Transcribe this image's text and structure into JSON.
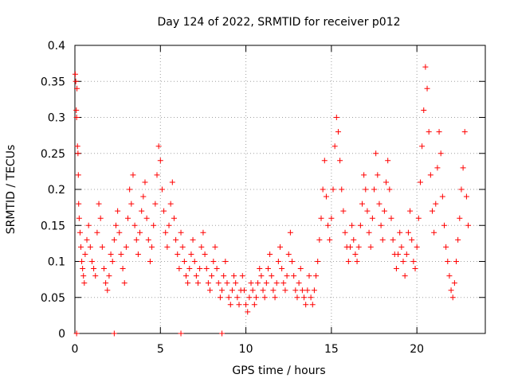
{
  "chart_data": {
    "type": "scatter",
    "title": "Day 124 of 2022, SRMTID for receiver p012",
    "xlabel": "GPS time / hours",
    "ylabel": "SRMTID / TECUs",
    "xlim": [
      0,
      24
    ],
    "ylim": [
      0,
      0.4
    ],
    "x_ticks": [
      0,
      5,
      10,
      15,
      20
    ],
    "x_tick_labels": [
      "0",
      "5",
      "10",
      "15",
      "20"
    ],
    "y_ticks": [
      0,
      0.05,
      0.1,
      0.15,
      0.2,
      0.25,
      0.3,
      0.35,
      0.4
    ],
    "y_tick_labels": [
      "0",
      "0.05",
      "0.1",
      "0.15",
      "0.2",
      "0.25",
      "0.3",
      "0.35",
      "0.4"
    ],
    "grid": true,
    "marker": "plus",
    "color": "#ff0000",
    "series": [
      {
        "name": "SRMTID",
        "points": [
          [
            0.02,
            0.36
          ],
          [
            0.05,
            0.35
          ],
          [
            0.08,
            0.31
          ],
          [
            0.1,
            0.3
          ],
          [
            0.12,
            0.34
          ],
          [
            0.15,
            0.26
          ],
          [
            0.18,
            0.25
          ],
          [
            0.2,
            0.22
          ],
          [
            0.22,
            0.18
          ],
          [
            0.25,
            0.16
          ],
          [
            0.3,
            0.14
          ],
          [
            0.35,
            0.12
          ],
          [
            0.4,
            0.1
          ],
          [
            0.45,
            0.09
          ],
          [
            0.5,
            0.08
          ],
          [
            0.55,
            0.07
          ],
          [
            0.6,
            0.11
          ],
          [
            0.7,
            0.13
          ],
          [
            0.8,
            0.15
          ],
          [
            0.9,
            0.12
          ],
          [
            1.0,
            0.1
          ],
          [
            1.1,
            0.09
          ],
          [
            1.2,
            0.08
          ],
          [
            1.3,
            0.14
          ],
          [
            1.4,
            0.18
          ],
          [
            1.5,
            0.16
          ],
          [
            1.6,
            0.12
          ],
          [
            1.7,
            0.09
          ],
          [
            1.8,
            0.07
          ],
          [
            1.9,
            0.06
          ],
          [
            2.0,
            0.08
          ],
          [
            2.1,
            0.11
          ],
          [
            2.2,
            0.1
          ],
          [
            2.3,
            0.13
          ],
          [
            2.4,
            0.15
          ],
          [
            2.5,
            0.17
          ],
          [
            2.6,
            0.14
          ],
          [
            2.7,
            0.11
          ],
          [
            2.8,
            0.09
          ],
          [
            2.9,
            0.07
          ],
          [
            3.0,
            0.12
          ],
          [
            3.1,
            0.16
          ],
          [
            3.2,
            0.2
          ],
          [
            3.3,
            0.18
          ],
          [
            3.4,
            0.22
          ],
          [
            3.5,
            0.15
          ],
          [
            3.6,
            0.13
          ],
          [
            3.7,
            0.11
          ],
          [
            3.8,
            0.14
          ],
          [
            3.9,
            0.17
          ],
          [
            4.0,
            0.19
          ],
          [
            4.1,
            0.21
          ],
          [
            4.2,
            0.16
          ],
          [
            4.3,
            0.13
          ],
          [
            4.4,
            0.1
          ],
          [
            4.5,
            0.12
          ],
          [
            4.6,
            0.15
          ],
          [
            4.7,
            0.18
          ],
          [
            4.8,
            0.22
          ],
          [
            4.9,
            0.26
          ],
          [
            5.0,
            0.24
          ],
          [
            5.1,
            0.2
          ],
          [
            5.2,
            0.17
          ],
          [
            5.3,
            0.14
          ],
          [
            5.4,
            0.12
          ],
          [
            5.5,
            0.15
          ],
          [
            5.6,
            0.18
          ],
          [
            5.7,
            0.21
          ],
          [
            5.8,
            0.16
          ],
          [
            5.9,
            0.13
          ],
          [
            6.0,
            0.11
          ],
          [
            6.1,
            0.09
          ],
          [
            6.2,
            0.14
          ],
          [
            6.3,
            0.12
          ],
          [
            6.4,
            0.1
          ],
          [
            6.5,
            0.08
          ],
          [
            6.6,
            0.07
          ],
          [
            6.7,
            0.09
          ],
          [
            6.8,
            0.11
          ],
          [
            6.9,
            0.13
          ],
          [
            7.0,
            0.1
          ],
          [
            7.1,
            0.08
          ],
          [
            7.2,
            0.07
          ],
          [
            7.3,
            0.09
          ],
          [
            7.4,
            0.12
          ],
          [
            7.5,
            0.14
          ],
          [
            7.6,
            0.11
          ],
          [
            7.7,
            0.09
          ],
          [
            7.8,
            0.07
          ],
          [
            7.9,
            0.06
          ],
          [
            8.0,
            0.08
          ],
          [
            8.1,
            0.1
          ],
          [
            8.2,
            0.12
          ],
          [
            8.3,
            0.09
          ],
          [
            8.4,
            0.07
          ],
          [
            8.5,
            0.05
          ],
          [
            8.6,
            0.06
          ],
          [
            8.7,
            0.08
          ],
          [
            8.8,
            0.1
          ],
          [
            8.9,
            0.07
          ],
          [
            9.0,
            0.05
          ],
          [
            9.1,
            0.04
          ],
          [
            9.2,
            0.06
          ],
          [
            9.3,
            0.08
          ],
          [
            9.4,
            0.07
          ],
          [
            9.5,
            0.05
          ],
          [
            9.6,
            0.04
          ],
          [
            9.7,
            0.06
          ],
          [
            9.8,
            0.08
          ],
          [
            9.9,
            0.06
          ],
          [
            10.0,
            0.04
          ],
          [
            10.1,
            0.03
          ],
          [
            10.2,
            0.05
          ],
          [
            10.3,
            0.07
          ],
          [
            10.4,
            0.06
          ],
          [
            10.5,
            0.04
          ],
          [
            10.6,
            0.05
          ],
          [
            10.7,
            0.07
          ],
          [
            10.8,
            0.09
          ],
          [
            10.9,
            0.08
          ],
          [
            11.0,
            0.06
          ],
          [
            11.1,
            0.05
          ],
          [
            11.2,
            0.07
          ],
          [
            11.3,
            0.09
          ],
          [
            11.4,
            0.11
          ],
          [
            11.5,
            0.08
          ],
          [
            11.6,
            0.06
          ],
          [
            11.7,
            0.05
          ],
          [
            11.8,
            0.07
          ],
          [
            11.9,
            0.1
          ],
          [
            12.0,
            0.12
          ],
          [
            12.1,
            0.09
          ],
          [
            12.2,
            0.07
          ],
          [
            12.3,
            0.06
          ],
          [
            12.4,
            0.08
          ],
          [
            12.5,
            0.11
          ],
          [
            12.6,
            0.14
          ],
          [
            12.7,
            0.1
          ],
          [
            12.8,
            0.08
          ],
          [
            12.9,
            0.06
          ],
          [
            13.0,
            0.05
          ],
          [
            13.1,
            0.07
          ],
          [
            13.2,
            0.09
          ],
          [
            13.3,
            0.06
          ],
          [
            13.4,
            0.05
          ],
          [
            13.5,
            0.04
          ],
          [
            13.6,
            0.06
          ],
          [
            13.7,
            0.08
          ],
          [
            13.8,
            0.05
          ],
          [
            13.9,
            0.04
          ],
          [
            14.0,
            0.06
          ],
          [
            14.1,
            0.08
          ],
          [
            14.2,
            0.1
          ],
          [
            14.3,
            0.13
          ],
          [
            14.4,
            0.16
          ],
          [
            14.5,
            0.2
          ],
          [
            14.6,
            0.24
          ],
          [
            14.7,
            0.19
          ],
          [
            14.8,
            0.15
          ],
          [
            14.9,
            0.13
          ],
          [
            15.0,
            0.16
          ],
          [
            15.1,
            0.2
          ],
          [
            15.2,
            0.26
          ],
          [
            15.3,
            0.3
          ],
          [
            15.4,
            0.28
          ],
          [
            15.5,
            0.24
          ],
          [
            15.6,
            0.2
          ],
          [
            15.7,
            0.17
          ],
          [
            15.8,
            0.14
          ],
          [
            15.9,
            0.12
          ],
          [
            16.0,
            0.1
          ],
          [
            16.1,
            0.12
          ],
          [
            16.2,
            0.15
          ],
          [
            16.3,
            0.13
          ],
          [
            16.4,
            0.11
          ],
          [
            16.5,
            0.1
          ],
          [
            16.6,
            0.12
          ],
          [
            16.7,
            0.15
          ],
          [
            16.8,
            0.18
          ],
          [
            16.9,
            0.22
          ],
          [
            17.0,
            0.2
          ],
          [
            17.1,
            0.17
          ],
          [
            17.2,
            0.14
          ],
          [
            17.3,
            0.12
          ],
          [
            17.4,
            0.16
          ],
          [
            17.5,
            0.2
          ],
          [
            17.6,
            0.25
          ],
          [
            17.7,
            0.22
          ],
          [
            17.8,
            0.18
          ],
          [
            17.9,
            0.15
          ],
          [
            18.0,
            0.13
          ],
          [
            18.1,
            0.17
          ],
          [
            18.2,
            0.21
          ],
          [
            18.3,
            0.24
          ],
          [
            18.4,
            0.2
          ],
          [
            18.5,
            0.16
          ],
          [
            18.6,
            0.13
          ],
          [
            18.7,
            0.11
          ],
          [
            18.8,
            0.09
          ],
          [
            18.9,
            0.11
          ],
          [
            19.0,
            0.14
          ],
          [
            19.1,
            0.12
          ],
          [
            19.2,
            0.1
          ],
          [
            19.3,
            0.08
          ],
          [
            19.4,
            0.11
          ],
          [
            19.5,
            0.14
          ],
          [
            19.6,
            0.17
          ],
          [
            19.7,
            0.13
          ],
          [
            19.8,
            0.1
          ],
          [
            19.9,
            0.09
          ],
          [
            20.0,
            0.12
          ],
          [
            20.1,
            0.16
          ],
          [
            20.2,
            0.21
          ],
          [
            20.3,
            0.26
          ],
          [
            20.4,
            0.31
          ],
          [
            20.5,
            0.37
          ],
          [
            20.6,
            0.34
          ],
          [
            20.7,
            0.28
          ],
          [
            20.8,
            0.22
          ],
          [
            20.9,
            0.17
          ],
          [
            21.0,
            0.14
          ],
          [
            21.1,
            0.18
          ],
          [
            21.2,
            0.23
          ],
          [
            21.3,
            0.28
          ],
          [
            21.4,
            0.25
          ],
          [
            21.5,
            0.19
          ],
          [
            21.6,
            0.15
          ],
          [
            21.7,
            0.12
          ],
          [
            21.8,
            0.1
          ],
          [
            21.9,
            0.08
          ],
          [
            22.0,
            0.06
          ],
          [
            22.1,
            0.05
          ],
          [
            22.2,
            0.07
          ],
          [
            22.3,
            0.1
          ],
          [
            22.4,
            0.13
          ],
          [
            22.5,
            0.16
          ],
          [
            22.6,
            0.2
          ],
          [
            22.7,
            0.23
          ],
          [
            22.8,
            0.28
          ],
          [
            22.9,
            0.19
          ],
          [
            23.0,
            0.15
          ]
        ]
      }
    ],
    "zero_markers_x": [
      0.1,
      2.3,
      6.2,
      8.6
    ]
  }
}
